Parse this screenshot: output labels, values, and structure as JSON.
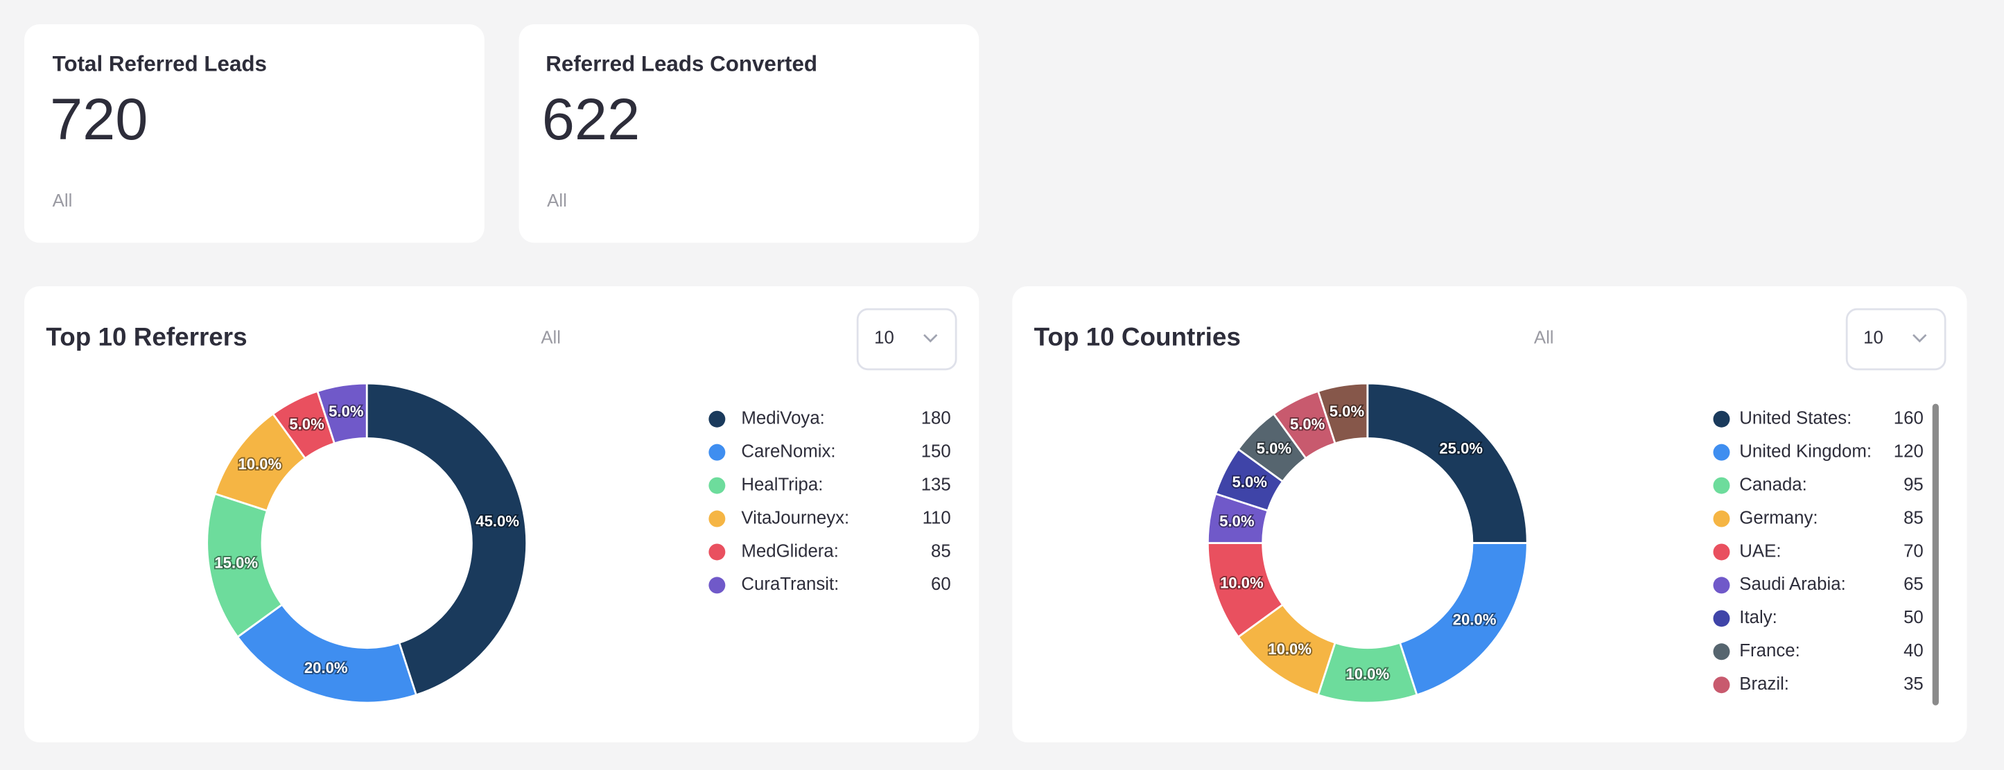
{
  "cards": [
    {
      "title": "Total Referred Leads",
      "value": 720,
      "filter": "All"
    },
    {
      "title": "Referred Leads Converted",
      "value": 622,
      "filter": "All"
    }
  ],
  "chart_data": [
    {
      "type": "pie",
      "title": "Top 10 Referrers",
      "filter": "All",
      "limit": 10,
      "categories": [
        "MediVoya:",
        "CareNomix:",
        "HealTripa:",
        "VitaJourneyx:",
        "MedGlidera:",
        "CuraTransit:"
      ],
      "values": [
        45,
        20,
        15,
        10,
        5,
        5
      ],
      "value_labels": [
        "45.0%",
        "20.0%",
        "15.0%",
        "10.0%",
        "5.0%",
        "5.0%"
      ],
      "legend_values": [
        180,
        150,
        135,
        110,
        85,
        60
      ],
      "colors": [
        "#1a3a5c",
        "#3f8ef0",
        "#6ddc9c",
        "#f5b544",
        "#e9505f",
        "#7059c9"
      ]
    },
    {
      "type": "pie",
      "title": "Top 10 Countries",
      "filter": "All",
      "limit": 10,
      "categories": [
        "United States:",
        "United Kingdom:",
        "Canada:",
        "Germany:",
        "UAE:",
        "Saudi Arabia:",
        "Italy:",
        "France:",
        "Brazil:",
        null
      ],
      "values": [
        25,
        20,
        10,
        10,
        10,
        5,
        5,
        5,
        5,
        5
      ],
      "value_labels": [
        "25.0%",
        "20.0%",
        "10.0%",
        "10.0%",
        "10.0%",
        "5.0%",
        "5.0%",
        "5.0%",
        "5.0%",
        "5.0%"
      ],
      "legend_values": [
        160,
        120,
        95,
        85,
        70,
        65,
        50,
        40,
        35,
        null
      ],
      "colors": [
        "#1a3a5c",
        "#3f8ef0",
        "#6ddc9c",
        "#f5b544",
        "#e9505f",
        "#7059c9",
        "#3f44a8",
        "#56656f",
        "#c85a6e",
        "#86574a"
      ]
    }
  ]
}
